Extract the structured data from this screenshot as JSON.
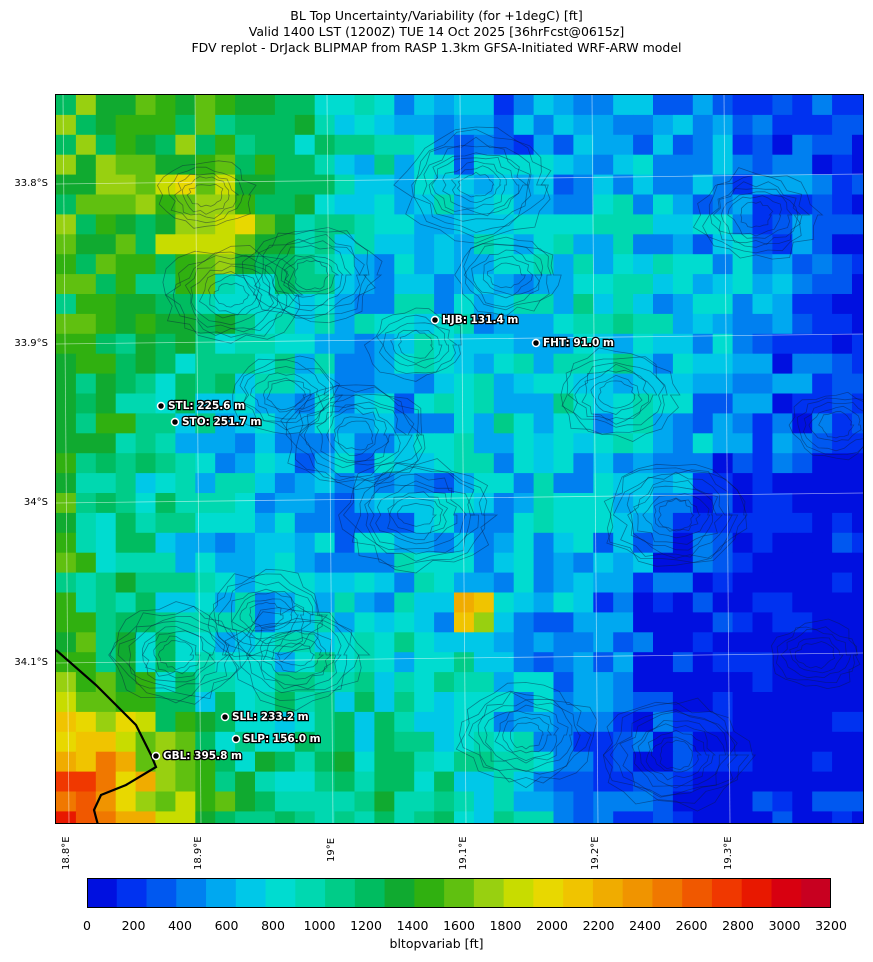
{
  "header": {
    "line1": "BL Top Uncertainty/Variability (for +1degC) [ft]",
    "line2": "Valid 1400 LST (1200Z) TUE 14 Oct 2025 [36hrFcst@0615z]",
    "line3": "FDV replot - DrJack BLIPMAP from RASP 1.3km GFSA-Initiated WRF-ARW model"
  },
  "axes": {
    "y_labels": [
      "33.8°S",
      "33.9°S",
      "34°S",
      "34.1°S"
    ],
    "x_labels": [
      "18.8°E",
      "18.9°E",
      "19°E",
      "19.1°E",
      "19.2°E",
      "19.3°E"
    ]
  },
  "stations": [
    {
      "id": "HJB",
      "label": "HJB: 131.4 m"
    },
    {
      "id": "FHT",
      "label": "FHT: 91.0 m"
    },
    {
      "id": "STL",
      "label": "STL: 225.6 m"
    },
    {
      "id": "STO",
      "label": "STO: 251.7 m"
    },
    {
      "id": "SLL",
      "label": "SLL: 233.2 m"
    },
    {
      "id": "SLP",
      "label": "SLP: 156.0 m"
    },
    {
      "id": "GBL",
      "label": "GBL: 395.8 m"
    }
  ],
  "colorbar": {
    "label": "bltopvariab [ft]",
    "ticks": [
      "0",
      "200",
      "400",
      "600",
      "800",
      "1000",
      "1200",
      "1400",
      "1600",
      "1800",
      "2000",
      "2200",
      "2400",
      "2600",
      "2800",
      "3000",
      "3200"
    ],
    "colors": [
      "#0010e0",
      "#0032f0",
      "#0058f0",
      "#0080f0",
      "#00a8f0",
      "#00c8e8",
      "#00dcd0",
      "#00d8b0",
      "#00cc88",
      "#00bc60",
      "#10aa30",
      "#30b010",
      "#60c010",
      "#98d010",
      "#c8dc00",
      "#e8d800",
      "#f0c400",
      "#f0ac00",
      "#f09400",
      "#f07800",
      "#f05800",
      "#f03800",
      "#e81800",
      "#d80010",
      "#c80020"
    ],
    "min": 0,
    "max": 3200
  }
}
